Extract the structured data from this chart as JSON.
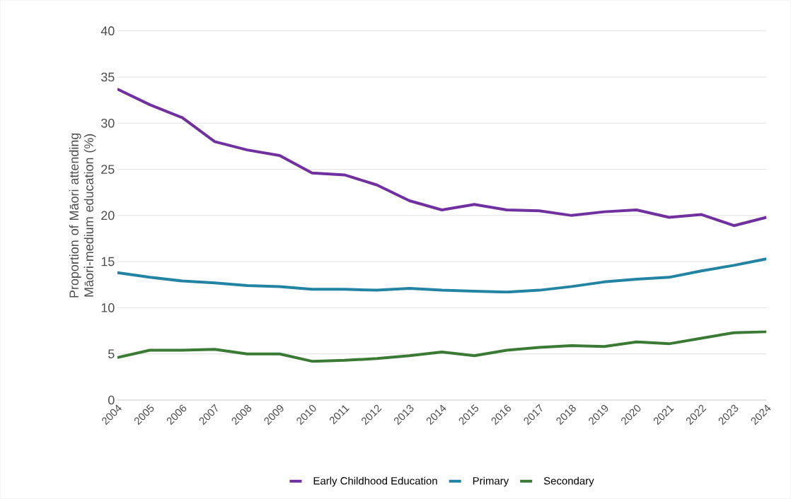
{
  "chart_data": {
    "type": "line",
    "ylabel": "Proportion of Māori attending Māori-medium education (%)",
    "categories": [
      "2004",
      "2005",
      "2006",
      "2007",
      "2008",
      "2009",
      "2010",
      "2011",
      "2012",
      "2013",
      "2014",
      "2015",
      "2016",
      "2017",
      "2018",
      "2019",
      "2020",
      "2021",
      "2022",
      "2023",
      "2024"
    ],
    "series": [
      {
        "name": "Early Childhood Education",
        "color": "#7030a0",
        "values": [
          33.7,
          32.0,
          30.6,
          28.0,
          27.1,
          26.5,
          24.6,
          24.4,
          23.3,
          21.6,
          20.6,
          21.2,
          20.6,
          20.5,
          20.0,
          20.4,
          20.6,
          19.8,
          20.1,
          18.9,
          19.8
        ]
      },
      {
        "name": "Primary",
        "color": "#2383a3",
        "values": [
          13.8,
          13.3,
          12.9,
          12.7,
          12.4,
          12.3,
          12.0,
          12.0,
          11.9,
          12.1,
          11.9,
          11.8,
          11.7,
          11.9,
          12.3,
          12.8,
          13.1,
          13.3,
          14.0,
          14.6,
          15.3
        ]
      },
      {
        "name": "Secondary",
        "color": "#3a7a35",
        "values": [
          4.6,
          5.4,
          5.4,
          5.5,
          5.0,
          5.0,
          4.2,
          4.3,
          4.5,
          4.8,
          5.2,
          4.8,
          5.4,
          5.7,
          5.9,
          5.8,
          6.3,
          6.1,
          6.7,
          7.3,
          7.4
        ]
      }
    ],
    "ylim": [
      0,
      40
    ],
    "yticks": [
      0,
      5,
      10,
      15,
      20,
      25,
      30,
      35,
      40
    ],
    "grid": "y",
    "legend": "bottom",
    "marker": "none",
    "line_style": "solid"
  }
}
